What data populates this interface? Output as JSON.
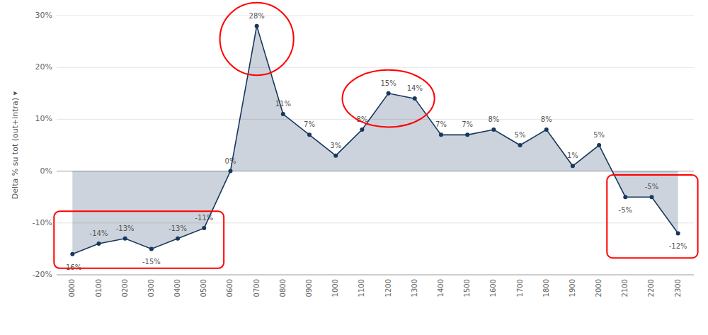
{
  "chart_data": {
    "type": "area",
    "categories": [
      "0000",
      "0100",
      "0200",
      "0300",
      "0400",
      "0500",
      "0600",
      "0700",
      "0800",
      "0900",
      "1000",
      "1100",
      "1200",
      "1300",
      "1400",
      "1500",
      "1600",
      "1700",
      "1800",
      "1900",
      "2000",
      "2100",
      "2200",
      "2300"
    ],
    "values": [
      -16,
      -14,
      -13,
      -15,
      -13,
      -11,
      0,
      28,
      11,
      7,
      3,
      8,
      15,
      14,
      7,
      7,
      8,
      5,
      8,
      1,
      5,
      -5,
      -5,
      -12
    ],
    "value_labels": [
      "-16%",
      "-14%",
      "-13%",
      "-15%",
      "-13%",
      "-11%",
      "0%",
      "28%",
      "11%",
      "7%",
      "3%",
      "8%",
      "15%",
      "14%",
      "7%",
      "7%",
      "8%",
      "5%",
      "8%",
      "1%",
      "5%",
      "-5%",
      "-5%",
      "-12%"
    ],
    "data_labels": true,
    "color": "#17375e",
    "marker": "circle",
    "ylabel": "Delta % su tot (out+intra)  ▾",
    "ylim": [
      -20,
      30
    ],
    "yticks": [
      {
        "value": -20,
        "label": "-20%"
      },
      {
        "value": -10,
        "label": "-10%"
      },
      {
        "value": 0,
        "label": "0%"
      },
      {
        "value": 10,
        "label": "10%"
      },
      {
        "value": 20,
        "label": "20%"
      },
      {
        "value": 30,
        "label": "30%"
      }
    ],
    "grid": true,
    "highlights": [
      {
        "shape": "rect",
        "from": "0000",
        "to": "0500",
        "y0": -18.5,
        "y1": -8.0,
        "color": "red"
      },
      {
        "shape": "rect",
        "from": "2100",
        "to": "2300",
        "y0": -16.5,
        "y1": -1.0,
        "color": "red"
      },
      {
        "shape": "ellipse",
        "at": "0700",
        "y": 25.5,
        "width": 2.8,
        "height": 14,
        "color": "red"
      },
      {
        "shape": "ellipse",
        "at": "1200",
        "y": 14.0,
        "width": 3.5,
        "height": 11,
        "color": "red"
      }
    ]
  }
}
